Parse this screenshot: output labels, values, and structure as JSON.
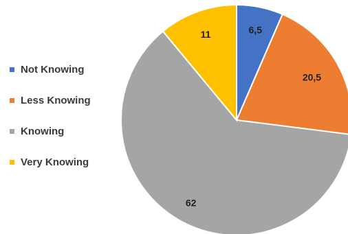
{
  "chart_data": {
    "type": "pie",
    "categories": [
      "Not Knowing",
      "Less Knowing",
      "Knowing",
      "Very Knowing"
    ],
    "values": [
      6.5,
      20.5,
      62,
      11
    ],
    "value_labels": [
      "6,5",
      "20,5",
      "62",
      "11"
    ],
    "colors": [
      "#4472C4",
      "#ED7D31",
      "#A5A5A5",
      "#FFC000"
    ],
    "legend_position": "left",
    "start_angle": "12 o'clock, clockwise"
  }
}
